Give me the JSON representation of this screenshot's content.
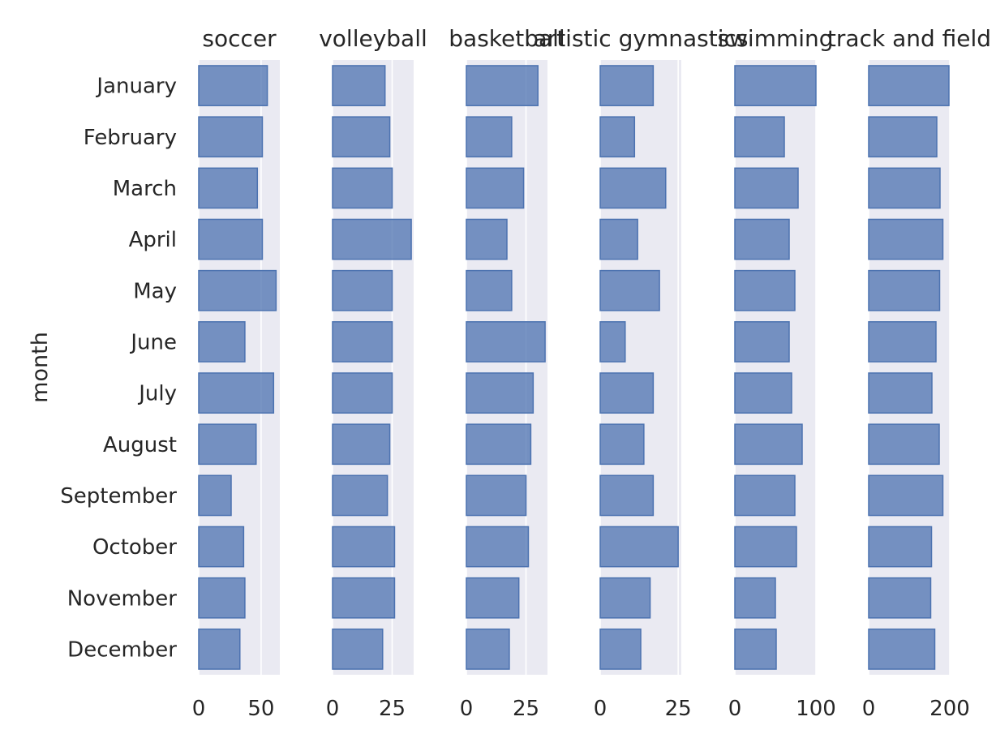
{
  "chart_data": {
    "type": "bar",
    "orientation": "horizontal",
    "ylabel": "month",
    "categories": [
      "January",
      "February",
      "March",
      "April",
      "May",
      "June",
      "July",
      "August",
      "September",
      "October",
      "November",
      "December"
    ],
    "bar_color": "#4c72b0",
    "facet_background": "#eaeaf2",
    "grid": true,
    "facets": [
      {
        "title": "soccer",
        "xlim": [
          0,
          65
        ],
        "ticks": [
          0,
          50
        ],
        "tick_labels": [
          "0",
          "50"
        ],
        "values": [
          55,
          51,
          47,
          51,
          62,
          37,
          60,
          46,
          26,
          36,
          37,
          33
        ]
      },
      {
        "title": "volleyball",
        "xlim": [
          0,
          34
        ],
        "ticks": [
          0,
          25
        ],
        "tick_labels": [
          "0",
          "25"
        ],
        "values": [
          22,
          24,
          25,
          33,
          25,
          25,
          25,
          24,
          23,
          26,
          26,
          21
        ]
      },
      {
        "title": "basketball",
        "xlim": [
          0,
          34
        ],
        "ticks": [
          0,
          25
        ],
        "tick_labels": [
          "0",
          "25"
        ],
        "values": [
          30,
          19,
          24,
          17,
          19,
          33,
          28,
          27,
          25,
          26,
          22,
          18
        ]
      },
      {
        "title": "artistic gymnastics",
        "xlim": [
          0,
          26
        ],
        "ticks": [
          0,
          25
        ],
        "tick_labels": [
          "0",
          "25"
        ],
        "values": [
          17,
          11,
          21,
          12,
          19,
          8,
          17,
          14,
          17,
          25,
          16,
          13
        ]
      },
      {
        "title": "swimming",
        "xlim": [
          0,
          100
        ],
        "ticks": [
          0,
          100
        ],
        "tick_labels": [
          "0",
          "100"
        ],
        "values": [
          100,
          61,
          78,
          67,
          74,
          67,
          70,
          83,
          74,
          76,
          50,
          51
        ]
      },
      {
        "title": "track and field",
        "xlim": [
          0,
          200
        ],
        "ticks": [
          0,
          200
        ],
        "tick_labels": [
          "0",
          "200"
        ],
        "values": [
          198,
          168,
          176,
          183,
          175,
          166,
          156,
          174,
          183,
          155,
          153,
          163
        ]
      }
    ]
  }
}
